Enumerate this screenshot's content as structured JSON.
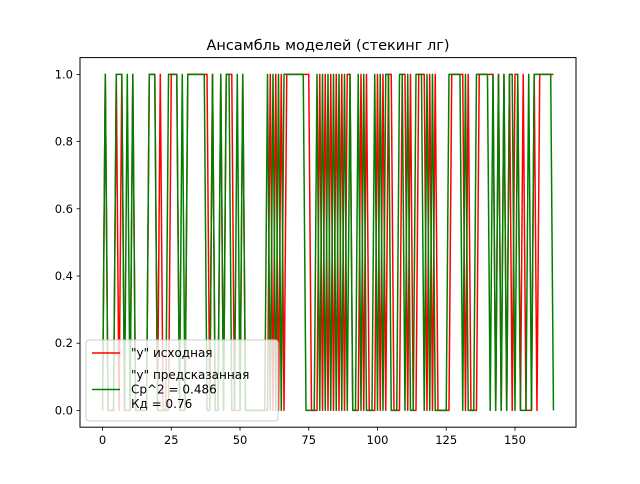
{
  "chart_data": {
    "type": "line",
    "title": "Ансамбль моделей (стекинг лг)",
    "xlabel": "",
    "ylabel": "",
    "xlim": [
      -8.2,
      172.2
    ],
    "ylim": [
      -0.05,
      1.05
    ],
    "x_ticks": [
      0,
      25,
      50,
      75,
      100,
      125,
      150
    ],
    "y_ticks": [
      0.0,
      0.2,
      0.4,
      0.6,
      0.8,
      1.0
    ],
    "x_tick_labels": [
      "0",
      "25",
      "50",
      "75",
      "100",
      "125",
      "150"
    ],
    "y_tick_labels": [
      "0.0",
      "0.2",
      "0.4",
      "0.6",
      "0.8",
      "1.0"
    ],
    "grid": false,
    "legend": {
      "placement": "lower-left",
      "entries": [
        {
          "label": "\"y\" исходная",
          "color": "#ff0000"
        },
        {
          "label": "\"y\" предсказанная\nСр^2 = 0.486\nКд = 0.76",
          "color": "#008000"
        }
      ]
    },
    "series": [
      {
        "name": "\"y\" исходная",
        "color": "#ff0000",
        "values": [
          0,
          1,
          0,
          0,
          0,
          1,
          0,
          1,
          0,
          0,
          0,
          1,
          0,
          0,
          0,
          0,
          0,
          1,
          1,
          1,
          0,
          1,
          0,
          0,
          0,
          1,
          1,
          1,
          0,
          0,
          0,
          1,
          1,
          1,
          1,
          1,
          1,
          1,
          1,
          0,
          1,
          0,
          0,
          1,
          0,
          1,
          1,
          1,
          0,
          0,
          0,
          1,
          0,
          0,
          0,
          0,
          0,
          0,
          0,
          0,
          0,
          1,
          0,
          1,
          0,
          1,
          0,
          1,
          1,
          1,
          1,
          1,
          1,
          1,
          1,
          1,
          0,
          0,
          0,
          1,
          0,
          1,
          0,
          1,
          0,
          1,
          0,
          1,
          0,
          1,
          1,
          0,
          0,
          0,
          1,
          0,
          1,
          0,
          0,
          0,
          1,
          0,
          1,
          0,
          1,
          1,
          0,
          0,
          0,
          1,
          1,
          0,
          1,
          0,
          0,
          1,
          1,
          1,
          0,
          1,
          0,
          1,
          0,
          0,
          0,
          0,
          0,
          1,
          1,
          1,
          1,
          1,
          0,
          1,
          0,
          0,
          0,
          1,
          1,
          1,
          1,
          1,
          1,
          0,
          1,
          0,
          1,
          0,
          1,
          0,
          1,
          1,
          0,
          1,
          0,
          0,
          0,
          1,
          0,
          1,
          1,
          1,
          1,
          1,
          1
        ]
      },
      {
        "name": "\"y\" предсказанная",
        "color": "#008000",
        "values": [
          0,
          1,
          0,
          0,
          0,
          1,
          1,
          1,
          0,
          1,
          0,
          1,
          0,
          0,
          0,
          0,
          0,
          1,
          1,
          1,
          0,
          0,
          0,
          0,
          1,
          1,
          1,
          1,
          0,
          1,
          0,
          1,
          1,
          1,
          1,
          1,
          1,
          1,
          0,
          0,
          1,
          0,
          0,
          1,
          0,
          1,
          1,
          0,
          0,
          1,
          0,
          1,
          0,
          0,
          0,
          0,
          0,
          0,
          0,
          0,
          1,
          0,
          1,
          0,
          1,
          0,
          1,
          1,
          1,
          1,
          1,
          1,
          1,
          1,
          0,
          0,
          0,
          0,
          1,
          0,
          1,
          0,
          1,
          0,
          1,
          0,
          1,
          0,
          1,
          0,
          1,
          0,
          0,
          1,
          0,
          1,
          0,
          0,
          0,
          1,
          0,
          1,
          0,
          1,
          1,
          0,
          0,
          0,
          1,
          1,
          0,
          1,
          0,
          0,
          1,
          1,
          1,
          0,
          1,
          0,
          1,
          0,
          0,
          0,
          0,
          0,
          1,
          1,
          1,
          1,
          1,
          0,
          1,
          0,
          0,
          0,
          1,
          1,
          1,
          1,
          1,
          0,
          1,
          0,
          1,
          0,
          1,
          0,
          1,
          1,
          0,
          1,
          0,
          0,
          0,
          1,
          0,
          1,
          1,
          1,
          1,
          1,
          1,
          1,
          0
        ]
      }
    ]
  }
}
